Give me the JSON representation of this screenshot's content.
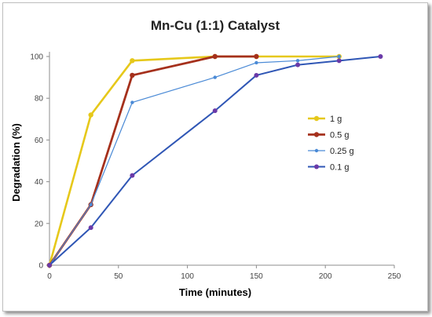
{
  "chart_data": {
    "type": "line",
    "title": "Mn-Cu (1:1) Catalyst",
    "xlabel": "Time (minutes)",
    "ylabel": "Degradation (%)",
    "xlim": [
      0,
      250
    ],
    "ylim": [
      0,
      100
    ],
    "xticks": [
      0,
      50,
      100,
      150,
      200,
      250
    ],
    "yticks": [
      0,
      20,
      40,
      60,
      80,
      100
    ],
    "grid": false,
    "legend_position": "right",
    "series": [
      {
        "name": "1 g",
        "color": "#e6c81a",
        "marker_color": "#e6c81a",
        "x": [
          0,
          30,
          60,
          120,
          150,
          210
        ],
        "y": [
          0,
          72,
          98,
          100,
          100,
          100
        ]
      },
      {
        "name": "0.5 g",
        "color": "#a5301c",
        "marker_color": "#a5301c",
        "x": [
          0,
          30,
          60,
          120,
          150
        ],
        "y": [
          0,
          29,
          91,
          100,
          100
        ]
      },
      {
        "name": "0.25 g",
        "color": "#4a8ad6",
        "marker_color": "#4a8ad6",
        "x": [
          0,
          30,
          60,
          120,
          150,
          180,
          210
        ],
        "y": [
          0,
          29,
          78,
          90,
          97,
          98,
          100
        ]
      },
      {
        "name": "0.1 g",
        "color": "#2f56b5",
        "marker_color": "#6a3aa8",
        "x": [
          0,
          30,
          60,
          120,
          150,
          180,
          210,
          240
        ],
        "y": [
          0,
          18,
          43,
          74,
          91,
          96,
          98,
          100
        ]
      }
    ]
  }
}
